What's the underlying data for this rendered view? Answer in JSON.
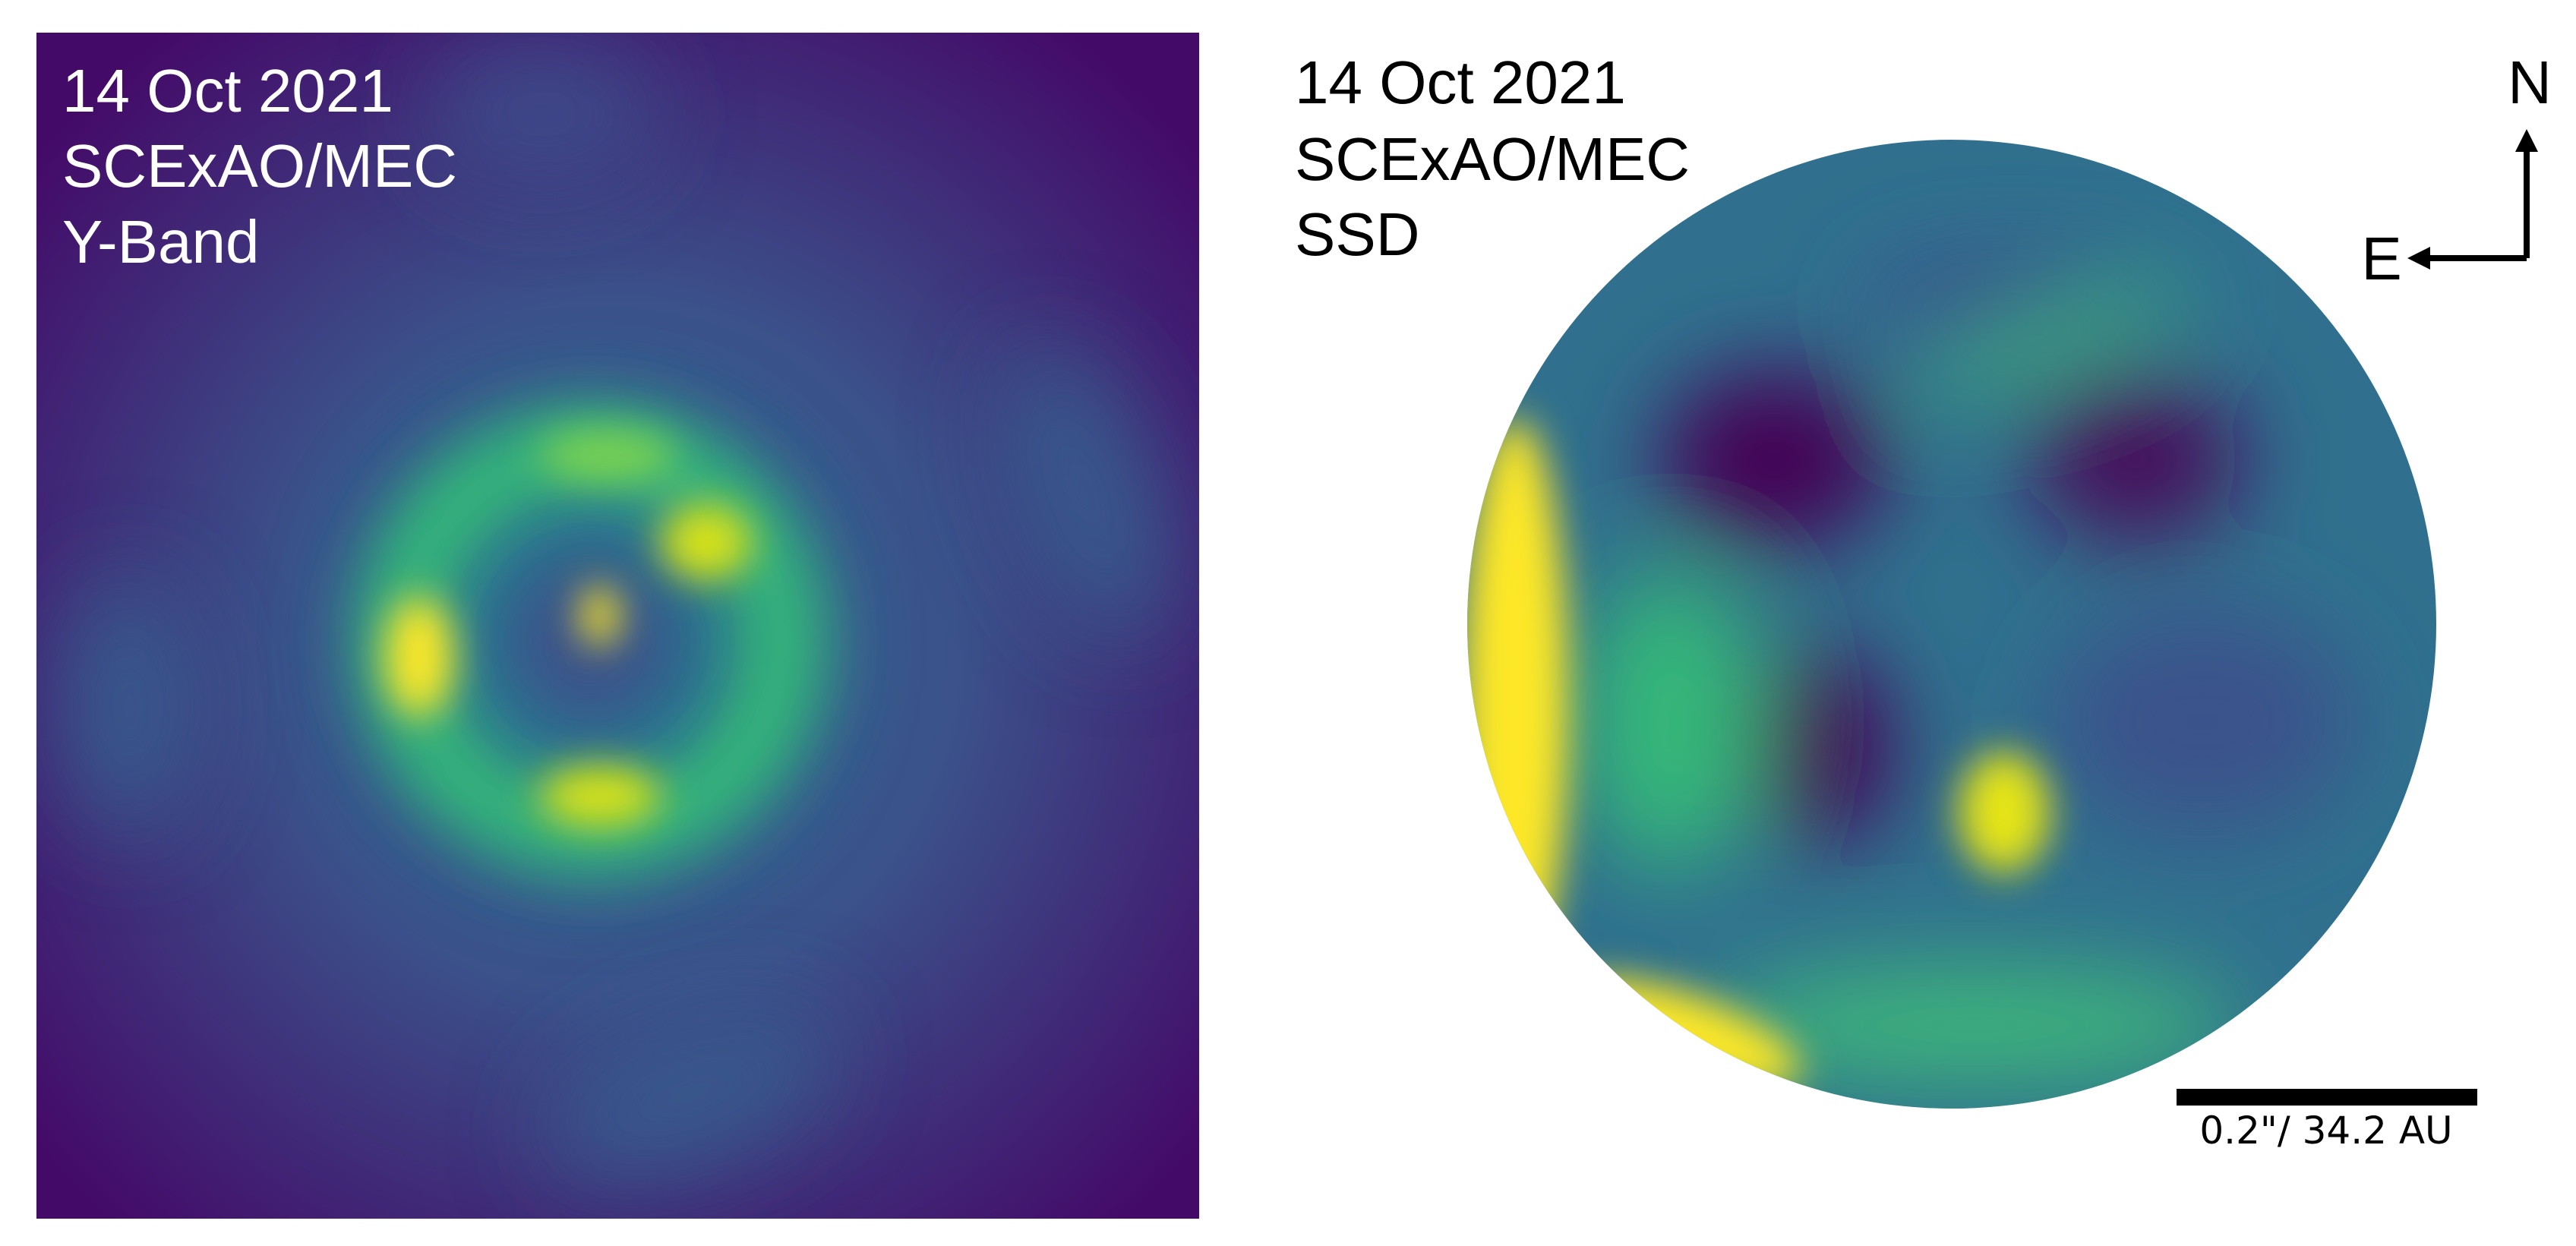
{
  "panels": [
    {
      "label_lines": [
        "14 Oct 2021",
        "SCExAO/MEC",
        "Y-Band"
      ]
    },
    {
      "label_lines": [
        "14 Oct 2021",
        "SCExAO/MEC",
        "SSD"
      ]
    }
  ],
  "compass": {
    "north": "N",
    "east": "E"
  },
  "scale_bar": {
    "label": "0.2\"/ 34.2 AU"
  }
}
